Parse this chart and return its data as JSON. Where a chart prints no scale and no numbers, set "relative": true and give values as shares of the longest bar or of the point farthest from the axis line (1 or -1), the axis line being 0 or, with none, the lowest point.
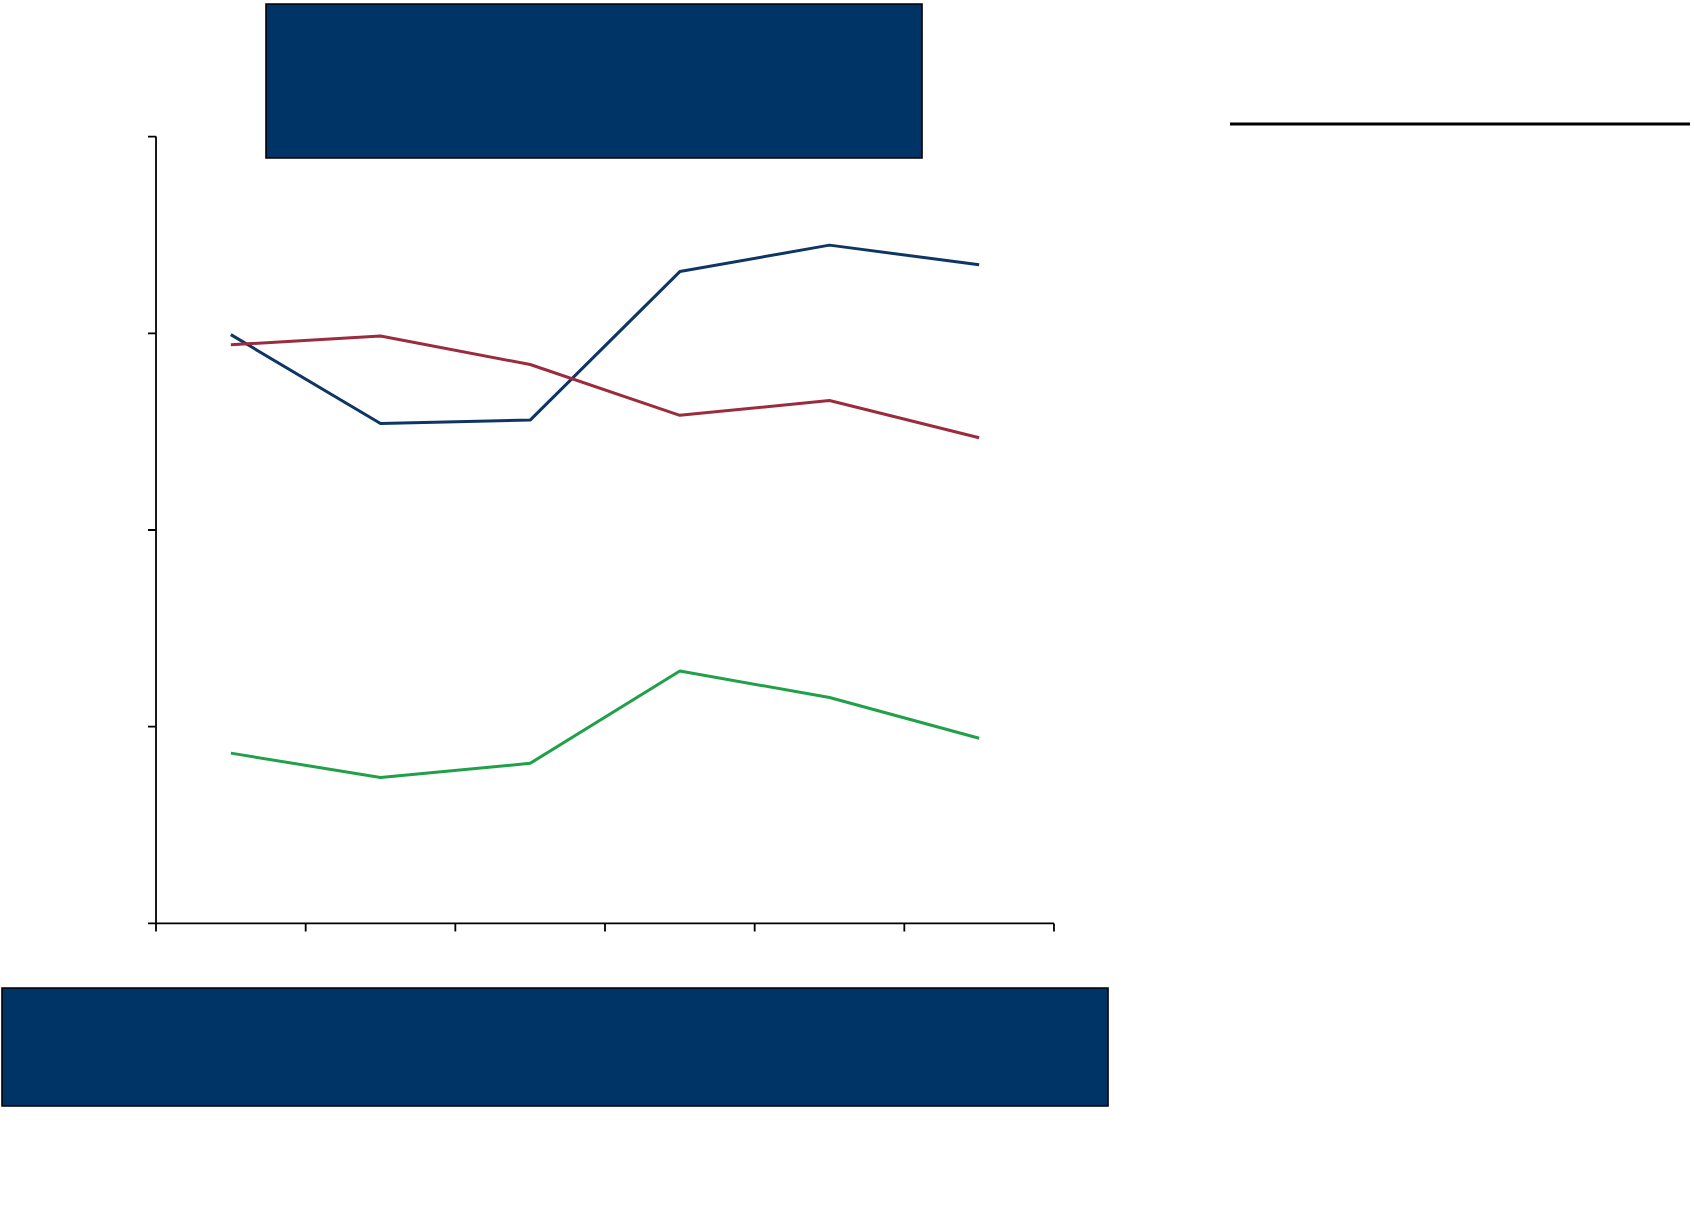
{
  "chart_data": {
    "type": "line",
    "relative": true,
    "categories": [
      null,
      null,
      null,
      null,
      null,
      null
    ],
    "series": [
      {
        "color": "#0f3564",
        "values": [
          0.868,
          0.737,
          0.742,
          0.961,
          1.0,
          0.971
        ]
      },
      {
        "color": "#9a2c3e",
        "values": [
          0.853,
          0.866,
          0.824,
          0.749,
          0.771,
          0.716
        ]
      },
      {
        "color": "#21a04a",
        "values": [
          0.251,
          0.215,
          0.236,
          0.372,
          0.333,
          0.273
        ]
      }
    ]
  }
}
